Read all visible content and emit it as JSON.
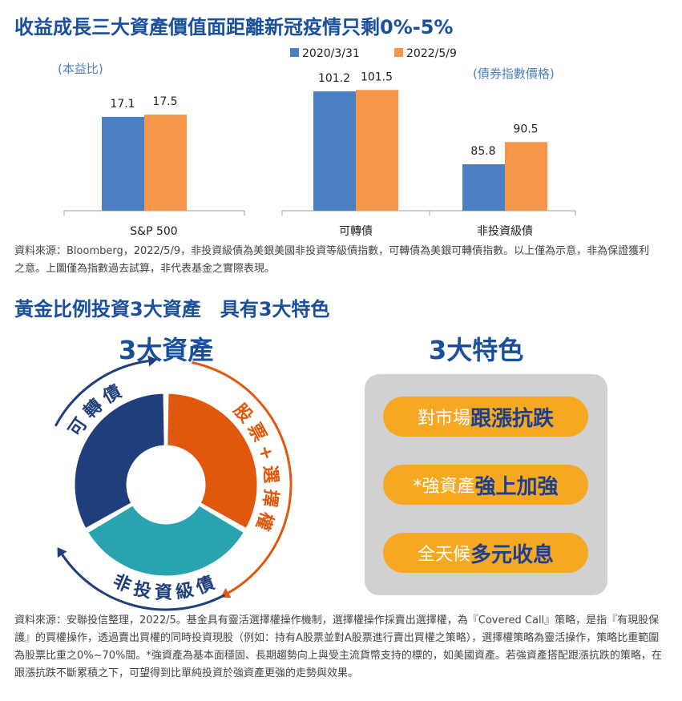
{
  "title1": "收益成長三大資產價值面距離新冠疫情只剩0%-5%",
  "chart_data": {
    "type": "bar",
    "legend": [
      "2020/3/31",
      "2022/5/9"
    ],
    "colors": [
      "#4a7fc1",
      "#f5964a"
    ],
    "left_axis_label": "(本益比)",
    "right_axis_label": "(債券指數價格)",
    "categories": [
      "S&P 500",
      "可轉債",
      "非投資級債"
    ],
    "series": [
      {
        "name": "2020/3/31",
        "values": [
          17.1,
          101.2,
          85.8
        ]
      },
      {
        "name": "2022/5/9",
        "values": [
          17.5,
          101.5,
          90.5
        ]
      }
    ],
    "value_labels": [
      [
        "17.1",
        "17.5"
      ],
      [
        "101.2",
        "101.5"
      ],
      [
        "85.8",
        "90.5"
      ]
    ],
    "legend_placement": "top"
  },
  "note1": "資料來源：Bloomberg，2022/5/9，非投資級債為美銀美國非投資等級債指數，可轉債為美銀可轉債指數。以上僅為示意，非為保證獲利之意。上圖僅為指數過去試算，非代表基金之實際表現。",
  "title2": "黃金比例投資3大資產　具有3大特色",
  "left_heading": "3大資產",
  "right_heading": "3大特色",
  "donut": {
    "labels": [
      "可轉債",
      "股票+選擇權",
      "非投資級債"
    ],
    "colors": [
      "#1e3f7c",
      "#e0580e",
      "#2aa3b0"
    ]
  },
  "features": [
    {
      "pre": "對市場",
      "bold": "跟漲抗跌"
    },
    {
      "pre": "*強資產",
      "bold": "強上加強"
    },
    {
      "pre": "全天候",
      "bold": "多元收息"
    }
  ],
  "note2": "資料來源：安聯投信整理，2022/5。基金具有靈活選擇權操作機制，選擇權操作採賣出選擇權，為『Covered Call』策略，是指『有現股保護』的買權操作，透過賣出買權的同時投資現股（例如：持有A股票並對A股票進行賣出買權之策略），選擇權策略為靈活操作，策略比重範圍為股票比重之0%~70%間。*強資產為基本面穩固、長期趨勢向上與受主流貨幣支持的標的，如美國資產。若強資產搭配跟漲抗跌的策略，在跟漲抗跌不斷累積之下，可望得到比單純投資於強資產更強的走勢與效果。"
}
